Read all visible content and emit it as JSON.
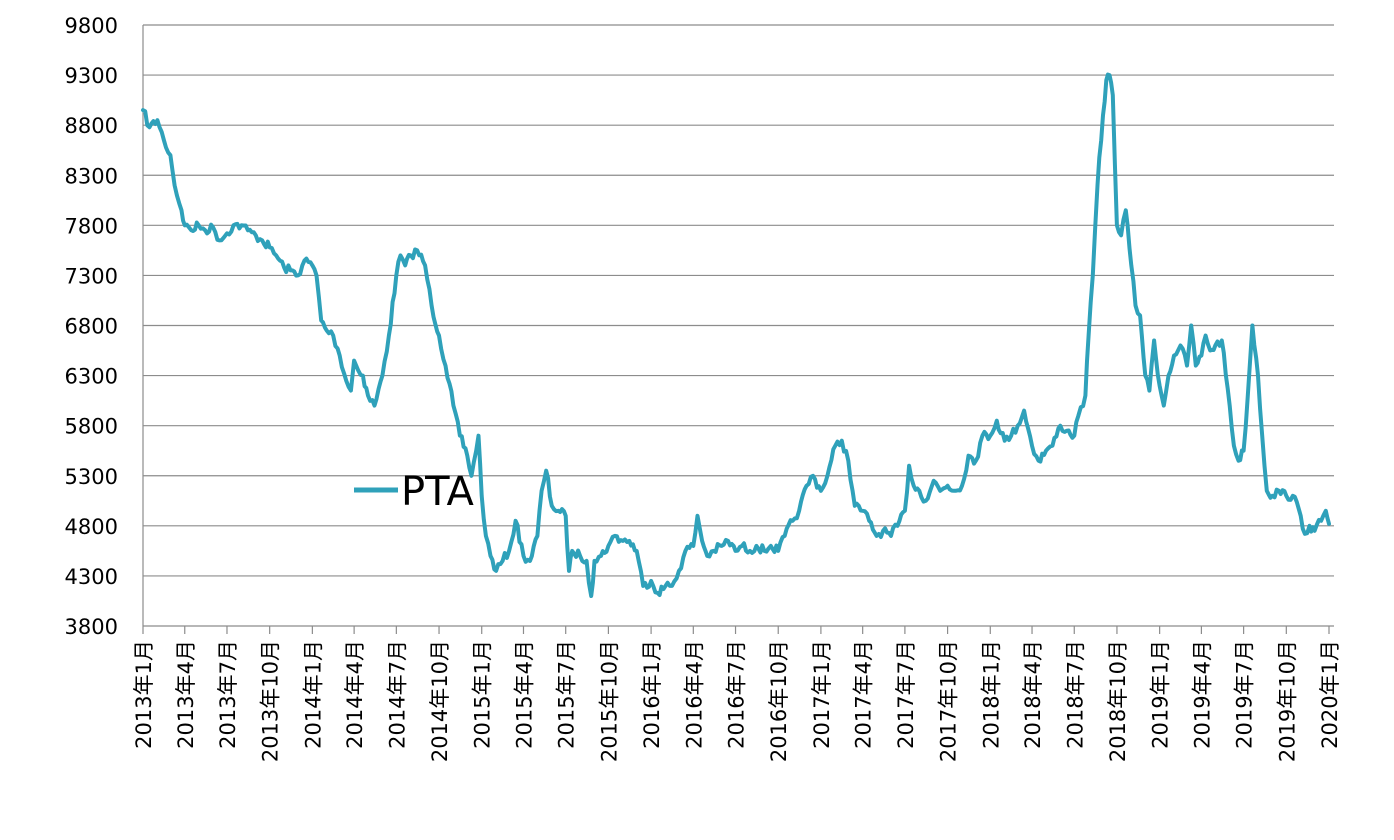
{
  "chart_data": {
    "type": "line",
    "title": "",
    "xlabel": "",
    "ylabel": "",
    "ylim": [
      3800,
      9800
    ],
    "y_ticks": [
      "3800",
      "4300",
      "4800",
      "5300",
      "5800",
      "6300",
      "6800",
      "7300",
      "7800",
      "8300",
      "8800",
      "9300",
      "9800"
    ],
    "x_ticks": [
      "2013年1月",
      "2013年4月",
      "2013年7月",
      "2013年10月",
      "2014年1月",
      "2014年4月",
      "2014年7月",
      "2014年10月",
      "2015年1月",
      "2015年4月",
      "2015年7月",
      "2015年10月",
      "2016年1月",
      "2016年4月",
      "2016年7月",
      "2016年10月",
      "2017年1月",
      "2017年4月",
      "2017年7月",
      "2017年10月",
      "2018年1月",
      "2018年4月",
      "2018年7月",
      "2018年10月",
      "2019年1月",
      "2019年4月",
      "2019年7月",
      "2019年10月",
      "2020年1月"
    ],
    "grid": "horizontal",
    "legend": "center-left",
    "series": [
      {
        "name": "PTA",
        "color": "#2FA1BA",
        "points": [
          [
            "2013-01",
            8950
          ],
          [
            "2013-01-15",
            8780
          ],
          [
            "2013-02",
            8850
          ],
          [
            "2013-02-15",
            8650
          ],
          [
            "2013-03",
            8500
          ],
          [
            "2013-03-10",
            8200
          ],
          [
            "2013-03-25",
            7950
          ],
          [
            "2013-04",
            7800
          ],
          [
            "2013-04-15",
            7750
          ],
          [
            "2013-05",
            7800
          ],
          [
            "2013-05-15",
            7750
          ],
          [
            "2013-06",
            7780
          ],
          [
            "2013-06-15",
            7650
          ],
          [
            "2013-07",
            7720
          ],
          [
            "2013-07-15",
            7800
          ],
          [
            "2013-08",
            7800
          ],
          [
            "2013-08-15",
            7750
          ],
          [
            "2013-09",
            7700
          ],
          [
            "2013-09-15",
            7650
          ],
          [
            "2013-10",
            7580
          ],
          [
            "2013-10-15",
            7500
          ],
          [
            "2013-11",
            7380
          ],
          [
            "2013-11-15",
            7350
          ],
          [
            "2013-12",
            7300
          ],
          [
            "2013-12-15",
            7450
          ],
          [
            "2014-01",
            7400
          ],
          [
            "2014-01-10",
            7300
          ],
          [
            "2014-01-20",
            6850
          ],
          [
            "2014-02",
            6750
          ],
          [
            "2014-02-15",
            6700
          ],
          [
            "2014-03",
            6500
          ],
          [
            "2014-03-15",
            6250
          ],
          [
            "2014-03-25",
            6150
          ],
          [
            "2014-04",
            6450
          ],
          [
            "2014-04-10",
            6350
          ],
          [
            "2014-04-20",
            6300
          ],
          [
            "2014-05",
            6100
          ],
          [
            "2014-05-15",
            6000
          ],
          [
            "2014-06",
            6300
          ],
          [
            "2014-06-15",
            6700
          ],
          [
            "2014-07",
            7300
          ],
          [
            "2014-07-10",
            7500
          ],
          [
            "2014-07-20",
            7400
          ],
          [
            "2014-08",
            7500
          ],
          [
            "2014-08-15",
            7550
          ],
          [
            "2014-09",
            7400
          ],
          [
            "2014-09-15",
            7000
          ],
          [
            "2014-10",
            6700
          ],
          [
            "2014-10-15",
            6400
          ],
          [
            "2014-11",
            6000
          ],
          [
            "2014-11-15",
            5700
          ],
          [
            "2014-12",
            5500
          ],
          [
            "2014-12-10",
            5300
          ],
          [
            "2014-12-25",
            5700
          ],
          [
            "2015-01",
            5100
          ],
          [
            "2015-01-10",
            4700
          ],
          [
            "2015-01-20",
            4500
          ],
          [
            "2015-02",
            4350
          ],
          [
            "2015-02-15",
            4450
          ],
          [
            "2015-03",
            4550
          ],
          [
            "2015-03-15",
            4850
          ],
          [
            "2015-04",
            4500
          ],
          [
            "2015-04-15",
            4450
          ],
          [
            "2015-05",
            4700
          ],
          [
            "2015-05-10",
            5150
          ],
          [
            "2015-05-20",
            5350
          ],
          [
            "2015-06",
            5000
          ],
          [
            "2015-06-15",
            4950
          ],
          [
            "2015-07",
            4900
          ],
          [
            "2015-07-08",
            4350
          ],
          [
            "2015-07-15",
            4550
          ],
          [
            "2015-08",
            4500
          ],
          [
            "2015-08-15",
            4450
          ],
          [
            "2015-08-25",
            4100
          ],
          [
            "2015-09",
            4450
          ],
          [
            "2015-09-15",
            4500
          ],
          [
            "2015-10",
            4600
          ],
          [
            "2015-10-15",
            4700
          ],
          [
            "2015-11",
            4650
          ],
          [
            "2015-11-15",
            4650
          ],
          [
            "2015-12",
            4550
          ],
          [
            "2015-12-15",
            4200
          ],
          [
            "2016-01",
            4250
          ],
          [
            "2016-01-15",
            4130
          ],
          [
            "2016-02",
            4200
          ],
          [
            "2016-02-15",
            4200
          ],
          [
            "2016-03",
            4350
          ],
          [
            "2016-03-15",
            4550
          ],
          [
            "2016-04",
            4600
          ],
          [
            "2016-04-10",
            4900
          ],
          [
            "2016-04-20",
            4650
          ],
          [
            "2016-05",
            4500
          ],
          [
            "2016-05-15",
            4550
          ],
          [
            "2016-06",
            4600
          ],
          [
            "2016-06-15",
            4650
          ],
          [
            "2016-07",
            4550
          ],
          [
            "2016-07-15",
            4600
          ],
          [
            "2016-08",
            4550
          ],
          [
            "2016-08-15",
            4600
          ],
          [
            "2016-09",
            4550
          ],
          [
            "2016-09-15",
            4600
          ],
          [
            "2016-10",
            4550
          ],
          [
            "2016-10-15",
            4700
          ],
          [
            "2016-11",
            4850
          ],
          [
            "2016-11-15",
            4950
          ],
          [
            "2016-12",
            5200
          ],
          [
            "2016-12-15",
            5300
          ],
          [
            "2017-01",
            5150
          ],
          [
            "2017-01-15",
            5300
          ],
          [
            "2017-02",
            5600
          ],
          [
            "2017-02-15",
            5650
          ],
          [
            "2017-03",
            5450
          ],
          [
            "2017-03-15",
            5000
          ],
          [
            "2017-04",
            4950
          ],
          [
            "2017-04-15",
            4850
          ],
          [
            "2017-05",
            4700
          ],
          [
            "2017-05-15",
            4750
          ],
          [
            "2017-06",
            4700
          ],
          [
            "2017-06-15",
            4800
          ],
          [
            "2017-07",
            4950
          ],
          [
            "2017-07-10",
            5400
          ],
          [
            "2017-07-20",
            5200
          ],
          [
            "2017-08",
            5150
          ],
          [
            "2017-08-15",
            5050
          ],
          [
            "2017-09",
            5250
          ],
          [
            "2017-09-15",
            5150
          ],
          [
            "2017-10",
            5200
          ],
          [
            "2017-10-15",
            5150
          ],
          [
            "2017-11",
            5200
          ],
          [
            "2017-11-15",
            5500
          ],
          [
            "2017-12",
            5450
          ],
          [
            "2017-12-15",
            5700
          ],
          [
            "2018-01",
            5700
          ],
          [
            "2018-01-15",
            5850
          ],
          [
            "2018-02",
            5650
          ],
          [
            "2018-02-15",
            5700
          ],
          [
            "2018-03",
            5800
          ],
          [
            "2018-03-15",
            5950
          ],
          [
            "2018-04",
            5600
          ],
          [
            "2018-04-15",
            5450
          ],
          [
            "2018-05",
            5550
          ],
          [
            "2018-05-15",
            5600
          ],
          [
            "2018-06",
            5800
          ],
          [
            "2018-06-15",
            5750
          ],
          [
            "2018-07",
            5700
          ],
          [
            "2018-07-10",
            5900
          ],
          [
            "2018-07-25",
            6100
          ],
          [
            "2018-08",
            6700
          ],
          [
            "2018-08-10",
            7300
          ],
          [
            "2018-08-20",
            8200
          ],
          [
            "2018-09",
            8900
          ],
          [
            "2018-09-08",
            9250
          ],
          [
            "2018-09-15",
            9300
          ],
          [
            "2018-09-22",
            9100
          ],
          [
            "2018-10",
            7800
          ],
          [
            "2018-10-10",
            7700
          ],
          [
            "2018-10-20",
            7950
          ],
          [
            "2018-11",
            7400
          ],
          [
            "2018-11-10",
            7000
          ],
          [
            "2018-11-20",
            6900
          ],
          [
            "2018-12",
            6300
          ],
          [
            "2018-12-10",
            6150
          ],
          [
            "2018-12-20",
            6650
          ],
          [
            "2019-01",
            6200
          ],
          [
            "2019-01-10",
            6000
          ],
          [
            "2019-01-20",
            6300
          ],
          [
            "2019-02",
            6500
          ],
          [
            "2019-02-15",
            6600
          ],
          [
            "2019-03",
            6400
          ],
          [
            "2019-03-10",
            6800
          ],
          [
            "2019-03-20",
            6400
          ],
          [
            "2019-04",
            6500
          ],
          [
            "2019-04-10",
            6700
          ],
          [
            "2019-04-20",
            6550
          ],
          [
            "2019-05",
            6600
          ],
          [
            "2019-05-15",
            6650
          ],
          [
            "2019-06",
            6000
          ],
          [
            "2019-06-10",
            5600
          ],
          [
            "2019-06-20",
            5450
          ],
          [
            "2019-07",
            5550
          ],
          [
            "2019-07-10",
            6100
          ],
          [
            "2019-07-20",
            6800
          ],
          [
            "2019-08",
            6300
          ],
          [
            "2019-08-10",
            5700
          ],
          [
            "2019-08-20",
            5150
          ],
          [
            "2019-09",
            5100
          ],
          [
            "2019-09-15",
            5150
          ],
          [
            "2019-10",
            5100
          ],
          [
            "2019-10-15",
            5100
          ],
          [
            "2019-11",
            4900
          ],
          [
            "2019-11-10",
            4720
          ],
          [
            "2019-11-20",
            4800
          ],
          [
            "2019-12",
            4750
          ],
          [
            "2019-12-15",
            4850
          ],
          [
            "2019-12-25",
            4950
          ],
          [
            "2020-01",
            4820
          ]
        ]
      }
    ]
  }
}
